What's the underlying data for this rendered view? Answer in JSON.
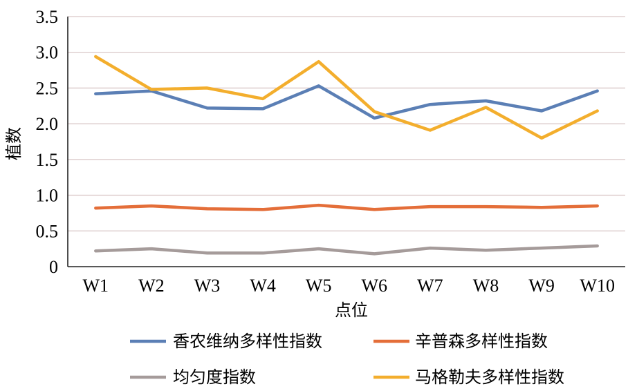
{
  "chart_data": {
    "type": "line",
    "title": "",
    "xlabel": "点位",
    "ylabel": "植数",
    "categories": [
      "W1",
      "W2",
      "W3",
      "W4",
      "W5",
      "W6",
      "W7",
      "W8",
      "W9",
      "W10"
    ],
    "ylim": [
      0,
      3.5
    ],
    "yticks": [
      "0",
      "0.5",
      "1.0",
      "1.5",
      "2.0",
      "2.5",
      "3.0",
      "3.5"
    ],
    "grid": true,
    "legend_position": "bottom",
    "series": [
      {
        "name": "香农维纳多样性指数",
        "color": "#5B7FB5",
        "values": [
          2.42,
          2.46,
          2.22,
          2.21,
          2.53,
          2.08,
          2.27,
          2.32,
          2.18,
          2.46
        ]
      },
      {
        "name": "辛普森多样性指数",
        "color": "#E46E39",
        "values": [
          0.82,
          0.85,
          0.81,
          0.8,
          0.86,
          0.8,
          0.84,
          0.84,
          0.83,
          0.85
        ]
      },
      {
        "name": "均匀度指数",
        "color": "#A59B9A",
        "values": [
          0.22,
          0.25,
          0.19,
          0.19,
          0.25,
          0.18,
          0.26,
          0.23,
          0.26,
          0.29
        ]
      },
      {
        "name": "马格勒夫多样性指数",
        "color": "#F3AE2D",
        "values": [
          2.94,
          2.48,
          2.5,
          2.35,
          2.87,
          2.17,
          1.91,
          2.23,
          1.8,
          2.18
        ]
      }
    ]
  }
}
